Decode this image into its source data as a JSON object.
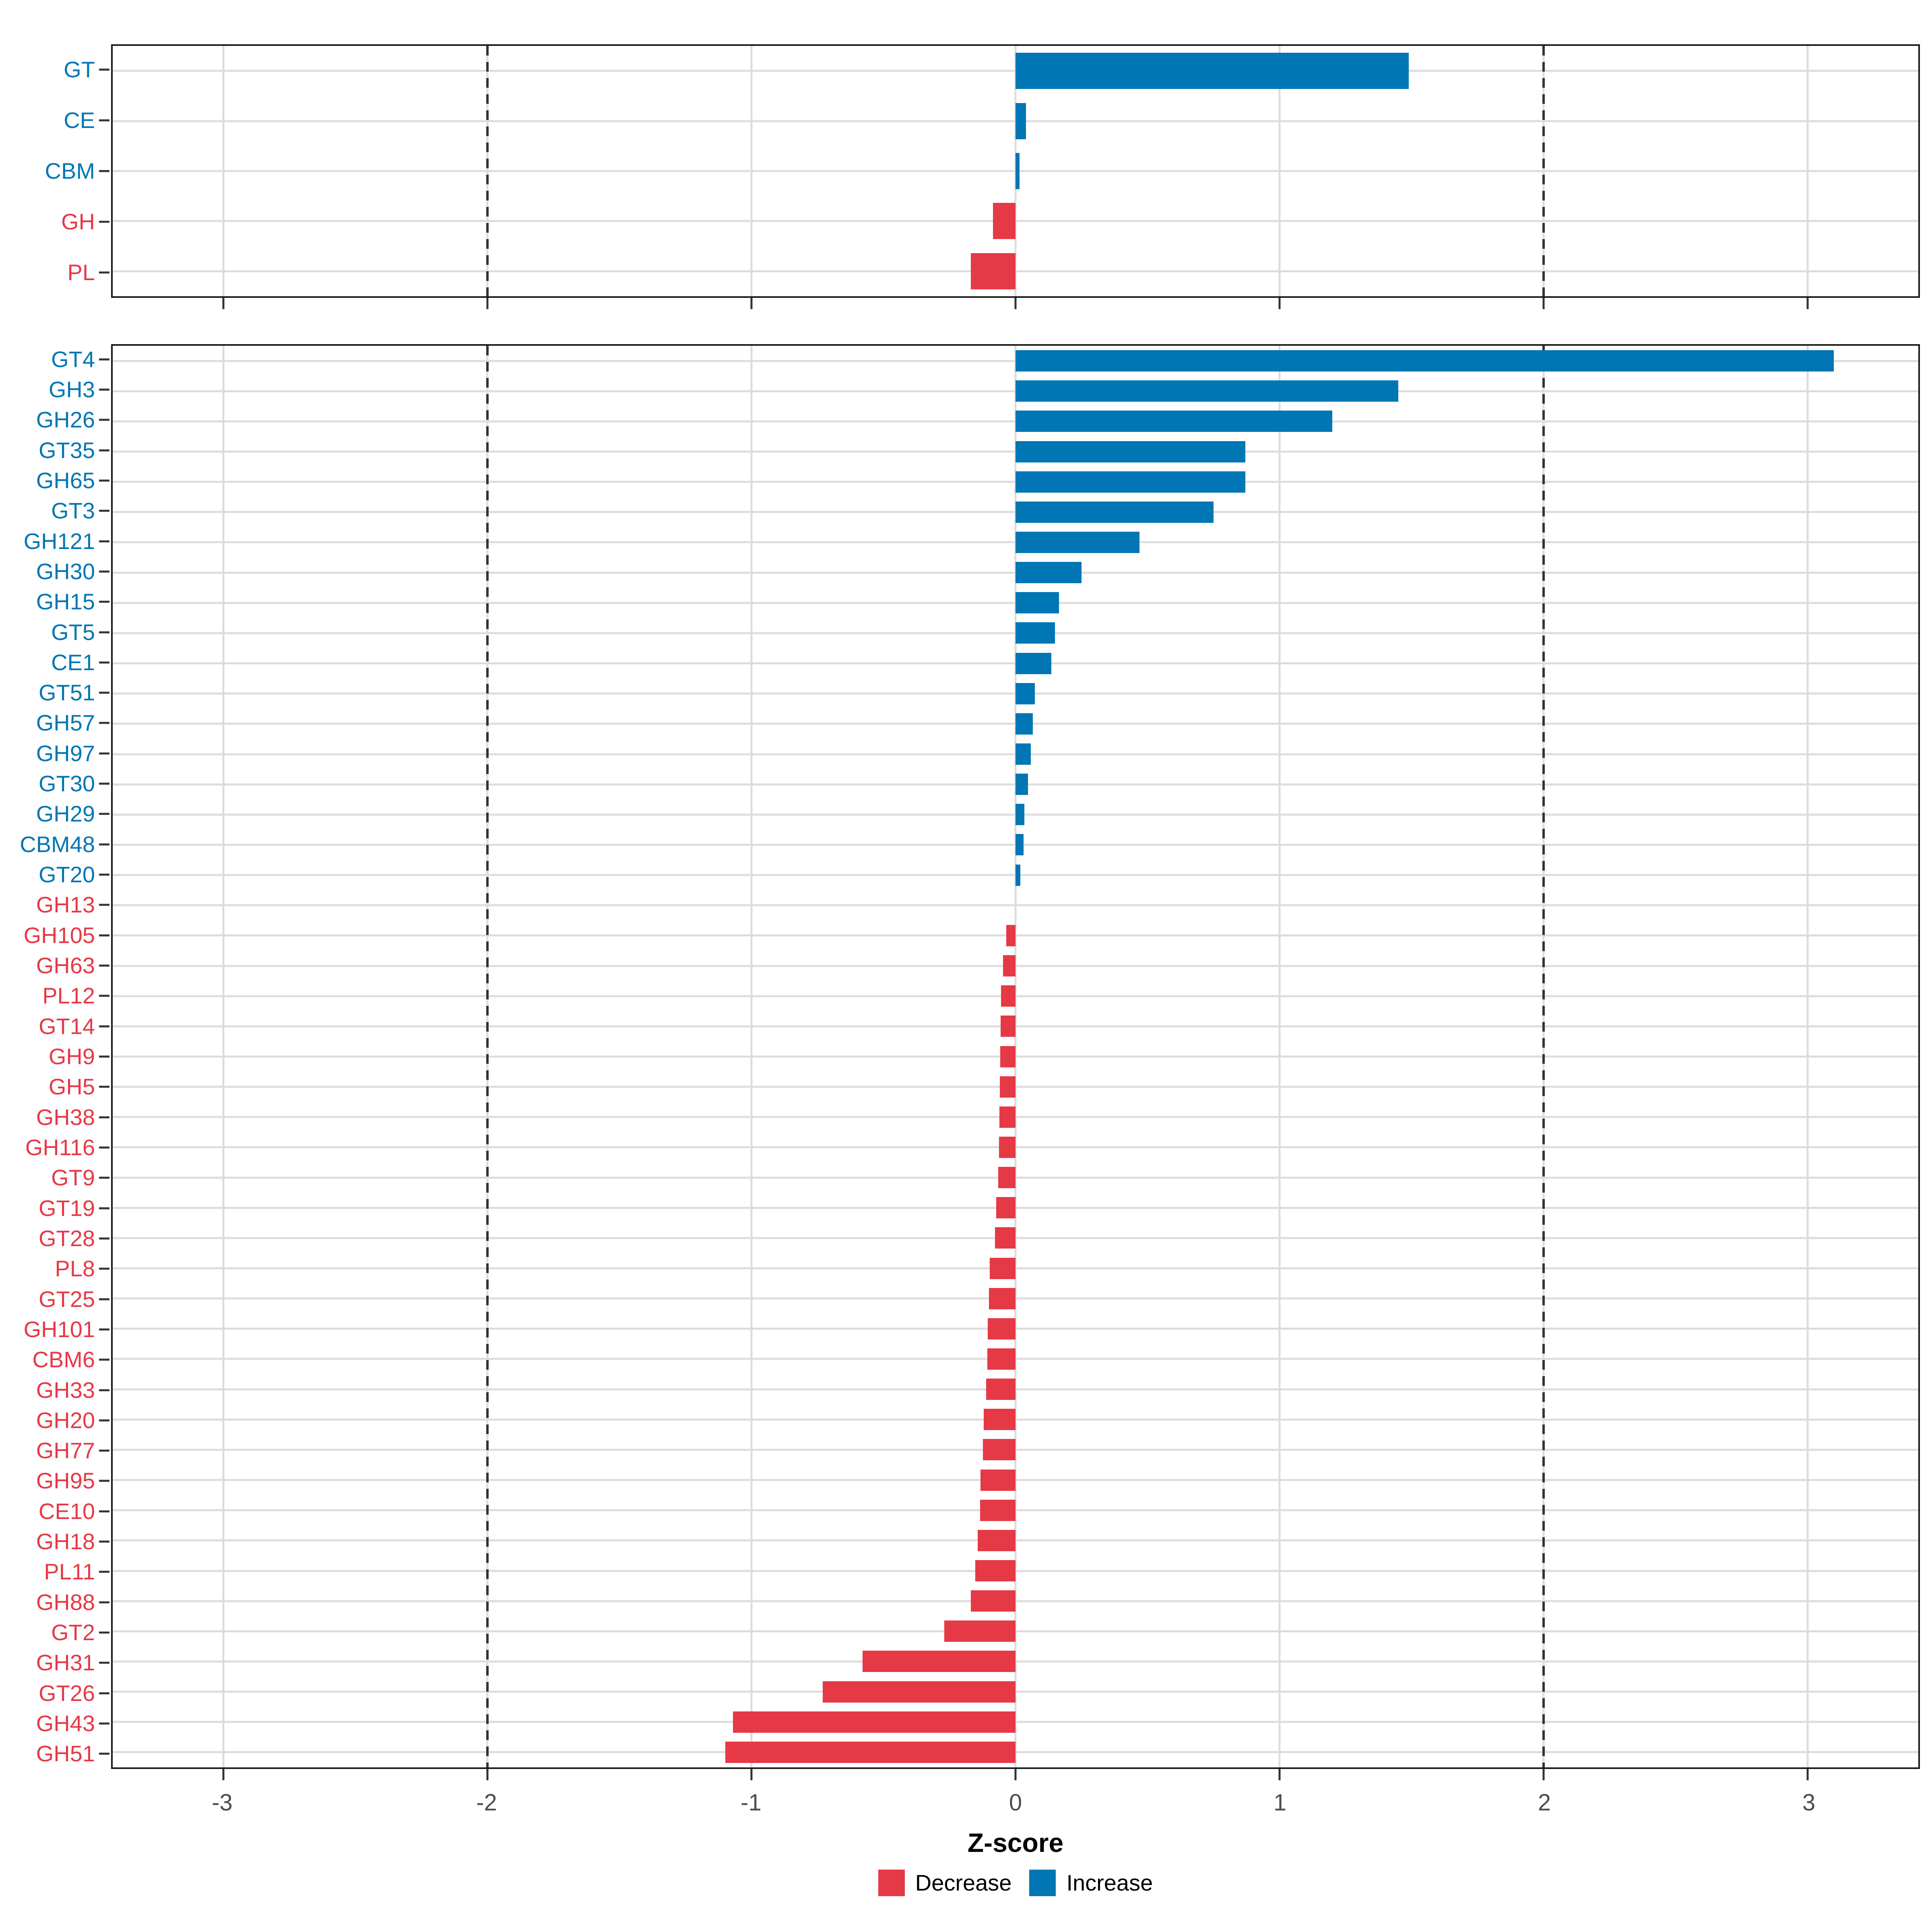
{
  "chart": {
    "axis": {
      "title": "Z-score",
      "tick_labels": [
        "-3",
        "-2",
        "-1",
        "0",
        "1",
        "2",
        "3"
      ],
      "tick_values": [
        -3,
        -2,
        -1,
        0,
        1,
        2,
        3
      ],
      "domain": [
        -3.42,
        3.42
      ],
      "dashed_reference_lines": [
        -2,
        2
      ],
      "grid": "on"
    },
    "legend": {
      "position": "bottom-center",
      "items": [
        {
          "label": "Decrease",
          "color": "#E63946"
        },
        {
          "label": "Increase",
          "color": "#0076B4"
        }
      ]
    },
    "colors": {
      "increase": "#0076B4",
      "decrease": "#E63946",
      "gridline": "#DCDCDC",
      "dashed_line": "#333333",
      "panel_border": "#1A1A1A",
      "axis_tick": "#333333",
      "tick_label_text": "#4D4D4D"
    }
  },
  "chart_data": [
    {
      "type": "bar",
      "orientation": "horizontal",
      "panel": "upper",
      "title": "",
      "xlabel": "Z-score",
      "ylabel": "",
      "xlim": [
        -3.42,
        3.42
      ],
      "categories": [
        "GT",
        "CE",
        "CBM",
        "GH",
        "PL"
      ],
      "values": [
        1.49,
        0.04,
        0.015,
        -0.085,
        -0.17
      ],
      "directions": [
        "increase",
        "increase",
        "increase",
        "decrease",
        "decrease"
      ]
    },
    {
      "type": "bar",
      "orientation": "horizontal",
      "panel": "lower",
      "title": "",
      "xlabel": "Z-score",
      "ylabel": "",
      "xlim": [
        -3.42,
        3.42
      ],
      "categories": [
        "GT4",
        "GH3",
        "GH26",
        "GT35",
        "GH65",
        "GT3",
        "GH121",
        "GH30",
        "GH15",
        "GT5",
        "CE1",
        "GT51",
        "GH57",
        "GH97",
        "GT30",
        "GH29",
        "CBM48",
        "GT20",
        "GH13",
        "GH105",
        "GH63",
        "PL12",
        "GT14",
        "GH9",
        "GH5",
        "GH38",
        "GH116",
        "GT9",
        "GT19",
        "GT28",
        "PL8",
        "GT25",
        "GH101",
        "CBM6",
        "GH33",
        "GH20",
        "GH77",
        "GH95",
        "CE10",
        "GH18",
        "PL11",
        "GH88",
        "GT2",
        "GH31",
        "GT26",
        "GH43",
        "GH51"
      ],
      "values": [
        3.1,
        1.45,
        1.2,
        0.87,
        0.87,
        0.75,
        0.47,
        0.25,
        0.165,
        0.15,
        0.135,
        0.073,
        0.066,
        0.058,
        0.048,
        0.034,
        0.03,
        0.018,
        0.0,
        -0.035,
        -0.047,
        -0.055,
        -0.057,
        -0.058,
        -0.06,
        -0.061,
        -0.062,
        -0.066,
        -0.073,
        -0.078,
        -0.098,
        -0.1,
        -0.105,
        -0.107,
        -0.112,
        -0.12,
        -0.124,
        -0.132,
        -0.134,
        -0.144,
        -0.152,
        -0.17,
        -0.27,
        -0.58,
        -0.73,
        -1.07,
        -1.1
      ],
      "directions": [
        "increase",
        "increase",
        "increase",
        "increase",
        "increase",
        "increase",
        "increase",
        "increase",
        "increase",
        "increase",
        "increase",
        "increase",
        "increase",
        "increase",
        "increase",
        "increase",
        "increase",
        "increase",
        "decrease",
        "decrease",
        "decrease",
        "decrease",
        "decrease",
        "decrease",
        "decrease",
        "decrease",
        "decrease",
        "decrease",
        "decrease",
        "decrease",
        "decrease",
        "decrease",
        "decrease",
        "decrease",
        "decrease",
        "decrease",
        "decrease",
        "decrease",
        "decrease",
        "decrease",
        "decrease",
        "decrease",
        "decrease",
        "decrease",
        "decrease",
        "decrease",
        "decrease"
      ]
    }
  ]
}
